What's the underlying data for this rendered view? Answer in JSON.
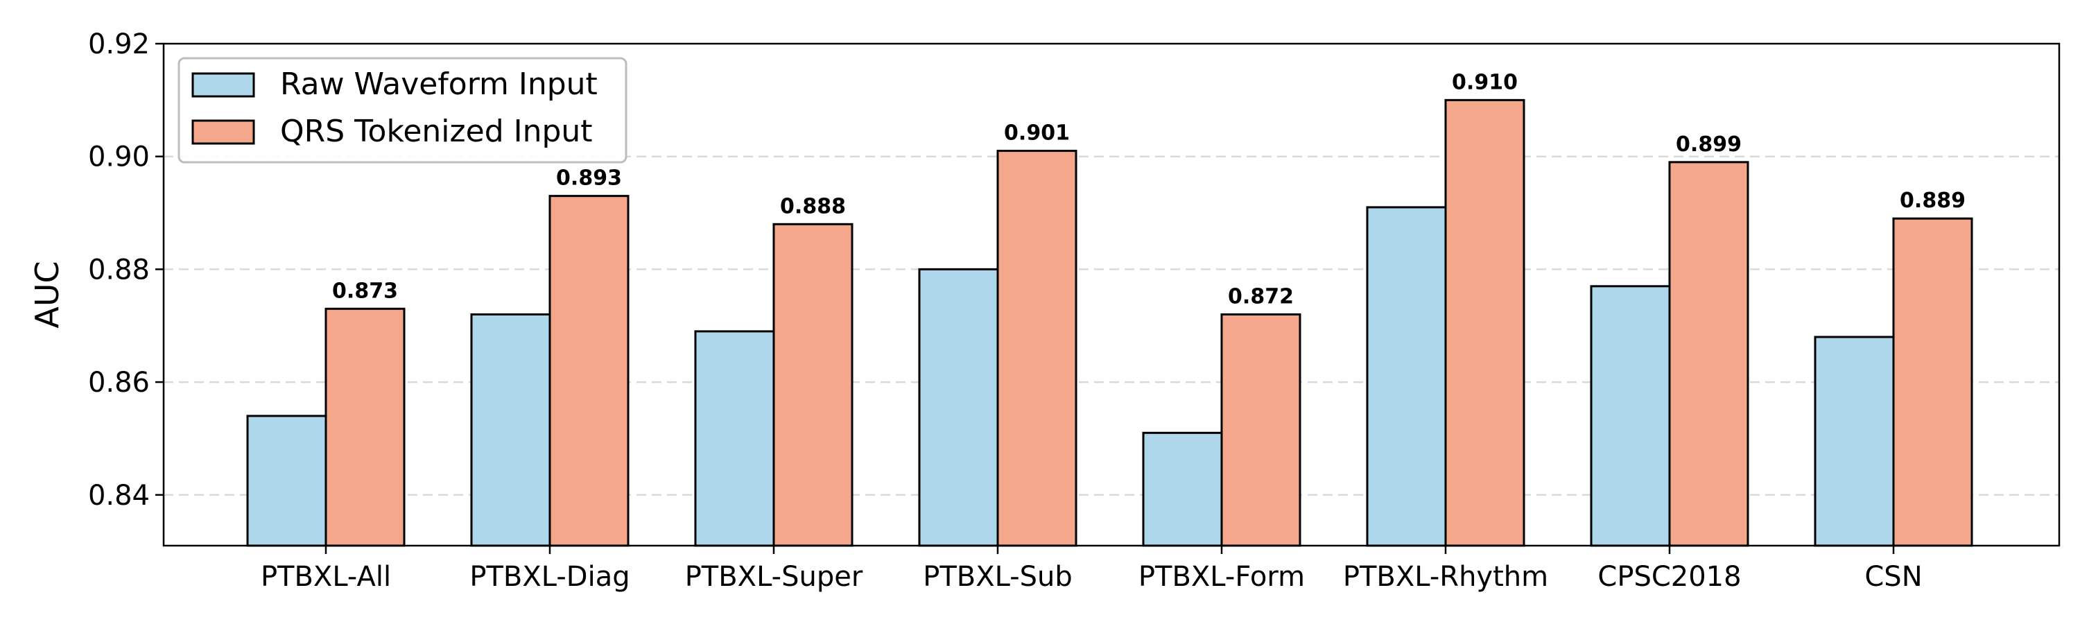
{
  "chart_data": {
    "type": "bar",
    "title": "",
    "xlabel": "",
    "ylabel": "AUC",
    "ylim": [
      0.831,
      0.92
    ],
    "yticks": [
      0.84,
      0.86,
      0.88,
      0.9,
      0.92
    ],
    "ytick_labels": [
      "0.84",
      "0.86",
      "0.88",
      "0.90",
      "0.92"
    ],
    "grid": "y, dashed",
    "legend_position": "top-left",
    "categories": [
      "PTBXL-All",
      "PTBXL-Diag",
      "PTBXL-Super",
      "PTBXL-Sub",
      "PTBXL-Form",
      "PTBXL-Rhythm",
      "CPSC2018",
      "CSN"
    ],
    "series": [
      {
        "name": "Raw Waveform Input",
        "color": "#afd7eb",
        "values": [
          0.854,
          0.872,
          0.869,
          0.88,
          0.851,
          0.891,
          0.877,
          0.868
        ],
        "value_labels": []
      },
      {
        "name": "QRS Tokenized Input",
        "color": "#f4a78a",
        "values": [
          0.873,
          0.893,
          0.888,
          0.901,
          0.872,
          0.91,
          0.899,
          0.889
        ],
        "value_labels": [
          "0.873",
          "0.893",
          "0.888",
          "0.901",
          "0.872",
          "0.910",
          "0.899",
          "0.889"
        ]
      }
    ]
  }
}
